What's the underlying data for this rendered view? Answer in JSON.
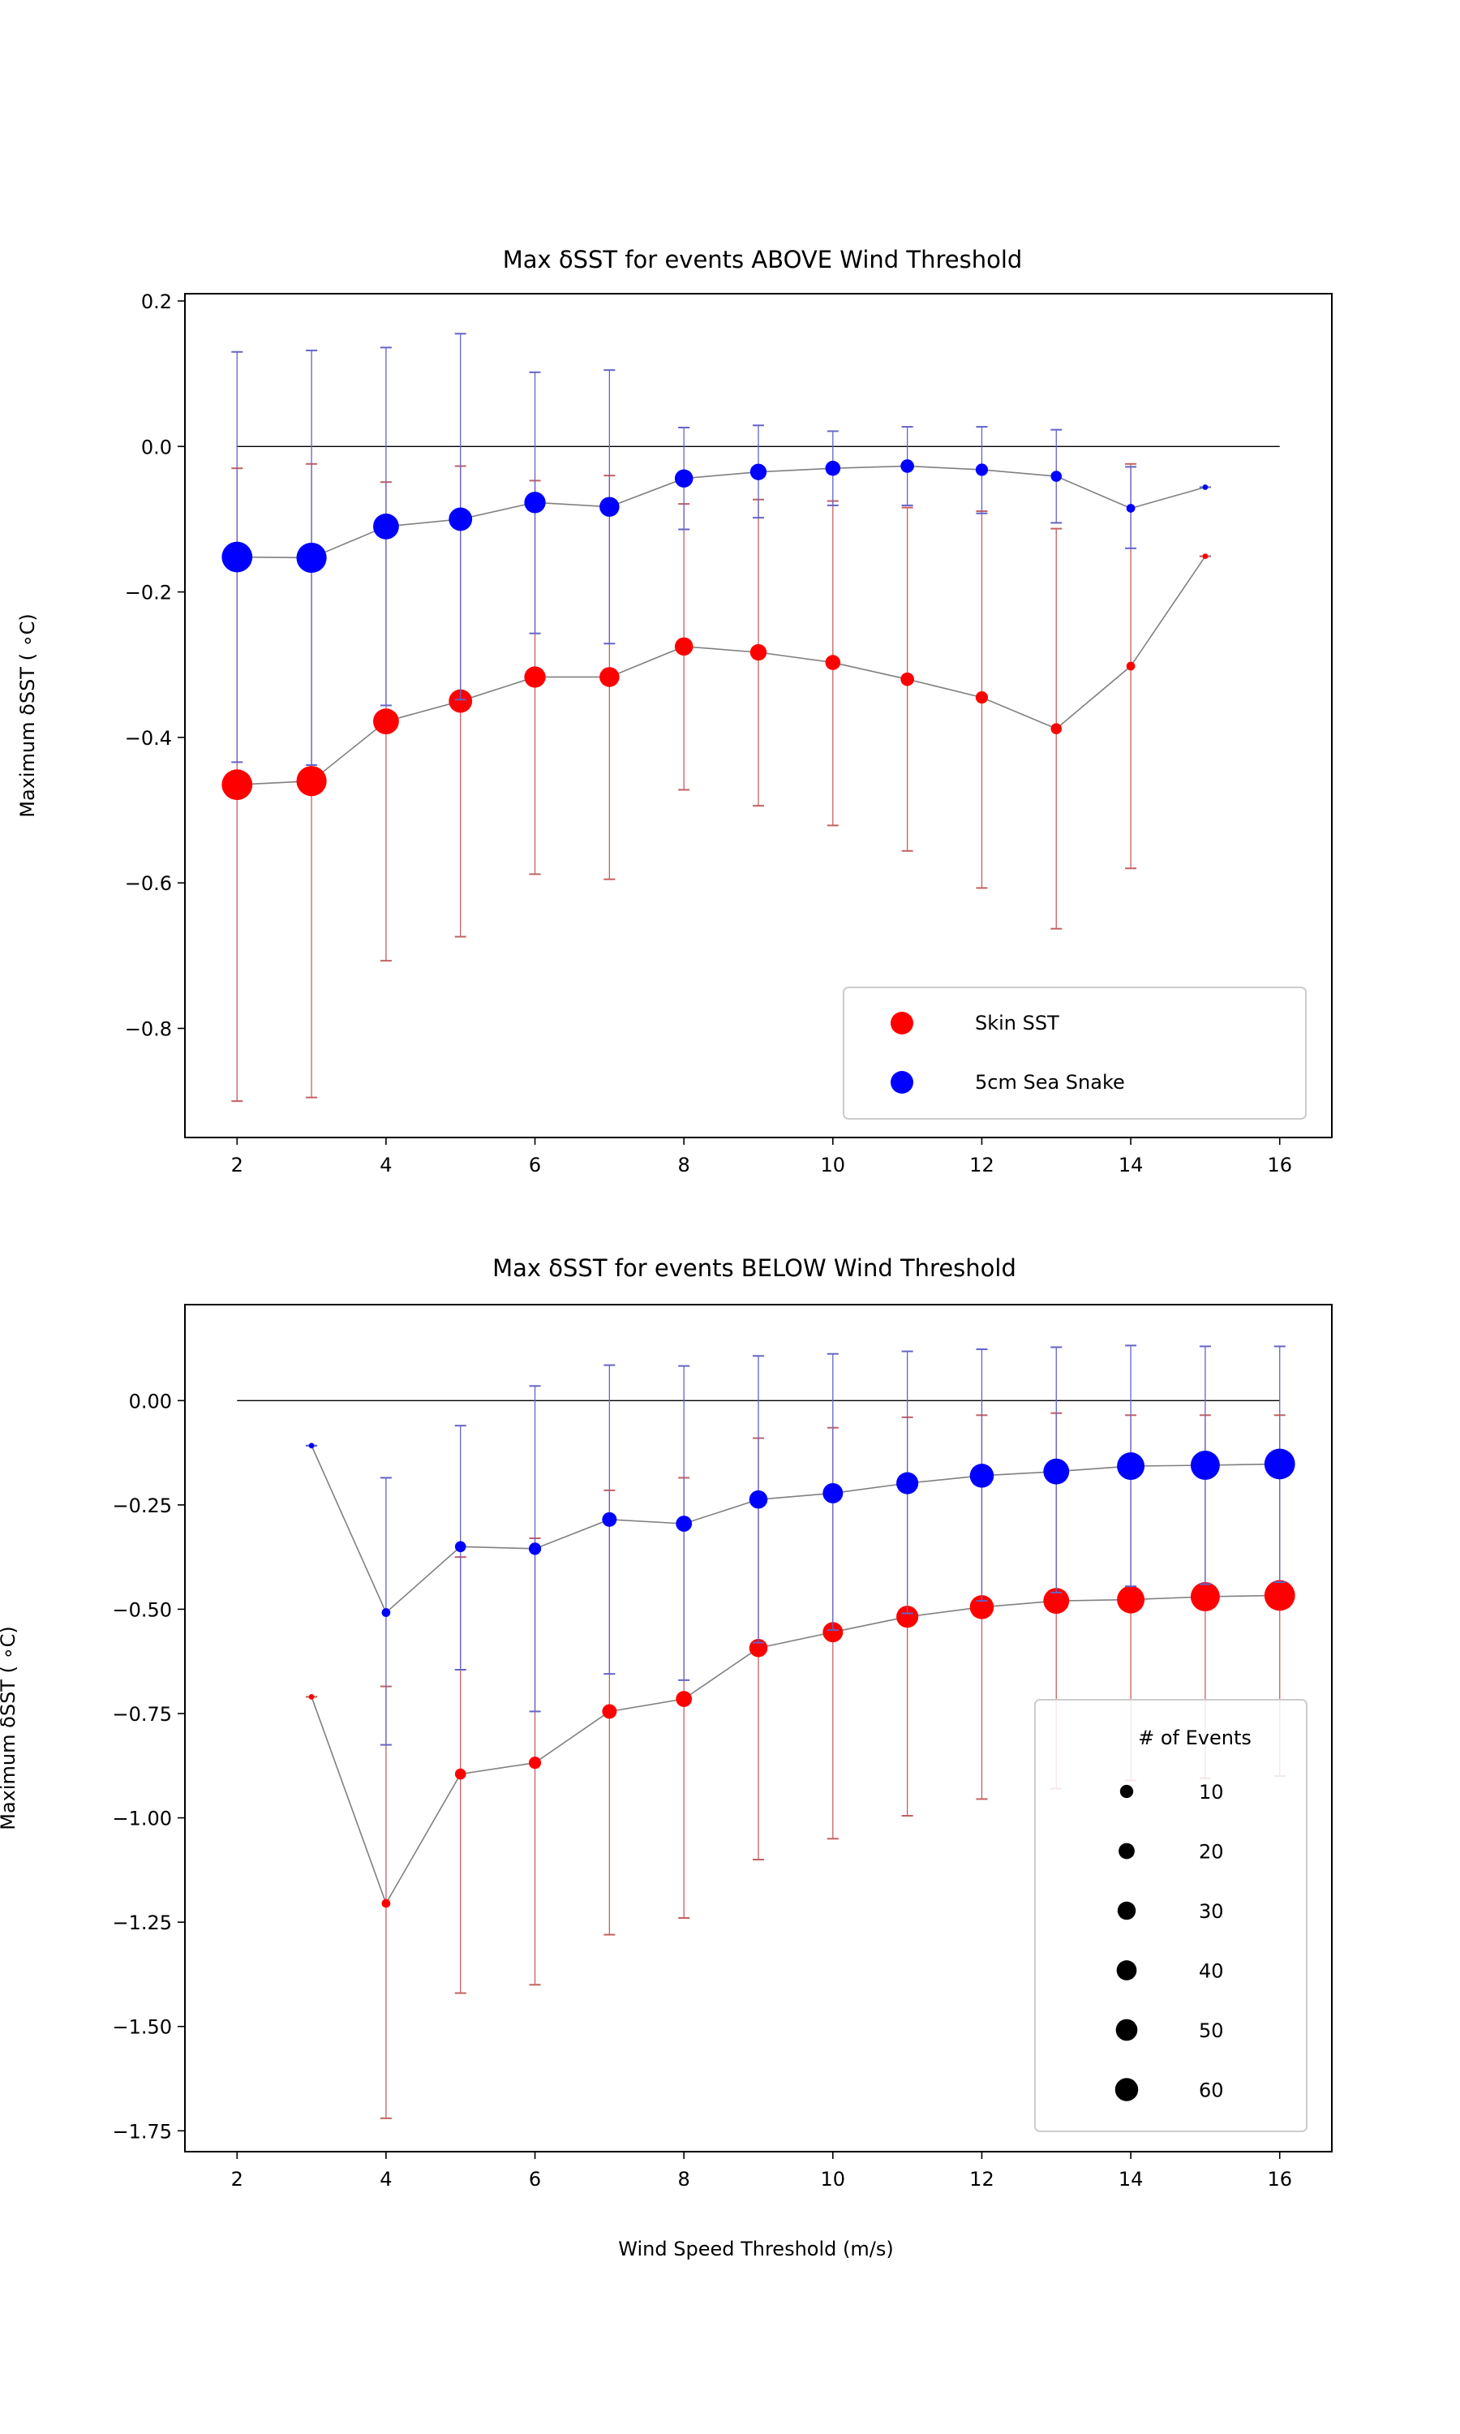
{
  "chart_data": [
    {
      "type": "scatter",
      "title": "Max δSST for events ABOVE Wind Threshold",
      "xlabel": "",
      "ylabel": "Maximum δSST ( ∘C)",
      "xlim": [
        1.3,
        16.7
      ],
      "ylim": [
        -0.95,
        0.21
      ],
      "xticks": [
        2,
        4,
        6,
        8,
        10,
        12,
        14,
        16
      ],
      "xtick_labels": [
        "2",
        "4",
        "6",
        "8",
        "10",
        "12",
        "14",
        "16"
      ],
      "yticks": [
        0.2,
        0.0,
        -0.2,
        -0.4,
        -0.6,
        -0.8
      ],
      "ytick_labels": [
        "0.2",
        "0.0",
        "−0.2",
        "−0.4",
        "−0.6",
        "−0.8"
      ],
      "zero_line": [
        2,
        16
      ],
      "legend": {
        "placement": "lower right",
        "entries": [
          "Skin SST",
          "5cm Sea Snake"
        ]
      },
      "series": [
        {
          "name": "Skin SST",
          "color": "#ff0000",
          "err_color": "#c46060",
          "x": [
            2,
            3,
            4,
            5,
            6,
            7,
            8,
            9,
            10,
            11,
            12,
            13,
            14,
            15
          ],
          "y": [
            -0.465,
            -0.46,
            -0.378,
            -0.35,
            -0.317,
            -0.317,
            -0.275,
            -0.283,
            -0.297,
            -0.32,
            -0.345,
            -0.388,
            -0.302,
            -0.151
          ],
          "lower": [
            -0.9,
            -0.895,
            -0.707,
            -0.674,
            -0.588,
            -0.595,
            -0.472,
            -0.494,
            -0.521,
            -0.556,
            -0.607,
            -0.663,
            -0.58,
            -0.151
          ],
          "upper": [
            -0.03,
            -0.024,
            -0.049,
            -0.027,
            -0.047,
            -0.04,
            -0.079,
            -0.073,
            -0.075,
            -0.084,
            -0.089,
            -0.113,
            -0.024,
            -0.151
          ],
          "events": [
            62,
            60,
            44,
            36,
            30,
            26,
            22,
            18,
            15,
            12,
            10,
            8,
            5,
            2
          ]
        },
        {
          "name": "5cm Sea Snake",
          "color": "#0000ff",
          "err_color": "#6464c8",
          "x": [
            2,
            3,
            4,
            5,
            6,
            7,
            8,
            9,
            10,
            11,
            12,
            13,
            14,
            15
          ],
          "y": [
            -0.152,
            -0.153,
            -0.11,
            -0.1,
            -0.077,
            -0.083,
            -0.044,
            -0.035,
            -0.03,
            -0.027,
            -0.032,
            -0.041,
            -0.085,
            -0.056
          ],
          "lower": [
            -0.434,
            -0.438,
            -0.356,
            -0.348,
            -0.257,
            -0.271,
            -0.114,
            -0.098,
            -0.081,
            -0.081,
            -0.092,
            -0.105,
            -0.14,
            -0.056
          ],
          "upper": [
            0.13,
            0.132,
            0.136,
            0.155,
            0.102,
            0.105,
            0.026,
            0.029,
            0.021,
            0.027,
            0.027,
            0.023,
            -0.028,
            -0.056
          ],
          "events": [
            62,
            60,
            44,
            36,
            30,
            26,
            22,
            18,
            15,
            12,
            10,
            8,
            5,
            2
          ]
        }
      ]
    },
    {
      "type": "scatter",
      "title": "Max δSST for events BELOW Wind Threshold",
      "xlabel": "Wind Speed Threshold (m/s)",
      "ylabel": "Maximum δSST ( ∘C)",
      "xlim": [
        1.3,
        16.7
      ],
      "ylim": [
        -1.8,
        0.23
      ],
      "xticks": [
        2,
        4,
        6,
        8,
        10,
        12,
        14,
        16
      ],
      "xtick_labels": [
        "2",
        "4",
        "6",
        "8",
        "10",
        "12",
        "14",
        "16"
      ],
      "yticks": [
        0.0,
        -0.25,
        -0.5,
        -0.75,
        -1.0,
        -1.25,
        -1.5,
        -1.75
      ],
      "ytick_labels": [
        "0.00",
        "−0.25",
        "−0.50",
        "−0.75",
        "−1.00",
        "−1.25",
        "−1.50",
        "−1.75"
      ],
      "zero_line": [
        2,
        16
      ],
      "legend": {
        "placement": "lower right",
        "title": "# of Events",
        "sizes": [
          10,
          20,
          30,
          40,
          50,
          60
        ],
        "labels": [
          "10",
          "20",
          "30",
          "40",
          "50",
          "60"
        ]
      },
      "series": [
        {
          "name": "Skin SST",
          "color": "#ff0000",
          "err_color": "#c46060",
          "x": [
            3,
            4,
            5,
            6,
            7,
            8,
            9,
            10,
            11,
            12,
            13,
            14,
            15,
            16
          ],
          "y": [
            -0.71,
            -1.205,
            -0.895,
            -0.868,
            -0.745,
            -0.715,
            -0.593,
            -0.555,
            -0.518,
            -0.495,
            -0.48,
            -0.477,
            -0.47,
            -0.467
          ],
          "lower": [
            -0.71,
            -1.72,
            -1.42,
            -1.4,
            -1.28,
            -1.24,
            -1.1,
            -1.05,
            -0.995,
            -0.955,
            -0.93,
            -0.91,
            -0.905,
            -0.9
          ],
          "upper": [
            -0.71,
            -0.685,
            -0.375,
            -0.33,
            -0.215,
            -0.185,
            -0.09,
            -0.065,
            -0.04,
            -0.035,
            -0.03,
            -0.035,
            -0.035,
            -0.035
          ],
          "events": [
            2,
            5,
            8,
            10,
            14,
            17,
            22,
            27,
            32,
            38,
            44,
            50,
            56,
            62
          ]
        },
        {
          "name": "5cm Sea Snake",
          "color": "#0000ff",
          "err_color": "#6464c8",
          "x": [
            3,
            4,
            5,
            6,
            7,
            8,
            9,
            10,
            11,
            12,
            13,
            14,
            15,
            16
          ],
          "y": [
            -0.108,
            -0.508,
            -0.35,
            -0.355,
            -0.285,
            -0.295,
            -0.237,
            -0.222,
            -0.198,
            -0.18,
            -0.17,
            -0.157,
            -0.155,
            -0.152
          ],
          "lower": [
            -0.108,
            -0.825,
            -0.645,
            -0.745,
            -0.655,
            -0.67,
            -0.58,
            -0.55,
            -0.51,
            -0.48,
            -0.46,
            -0.445,
            -0.44,
            -0.435
          ],
          "upper": [
            -0.108,
            -0.185,
            -0.06,
            0.035,
            0.085,
            0.083,
            0.107,
            0.112,
            0.118,
            0.123,
            0.128,
            0.132,
            0.13,
            0.13
          ],
          "events": [
            2,
            5,
            8,
            10,
            14,
            17,
            22,
            27,
            32,
            38,
            44,
            50,
            56,
            62
          ]
        }
      ]
    }
  ]
}
